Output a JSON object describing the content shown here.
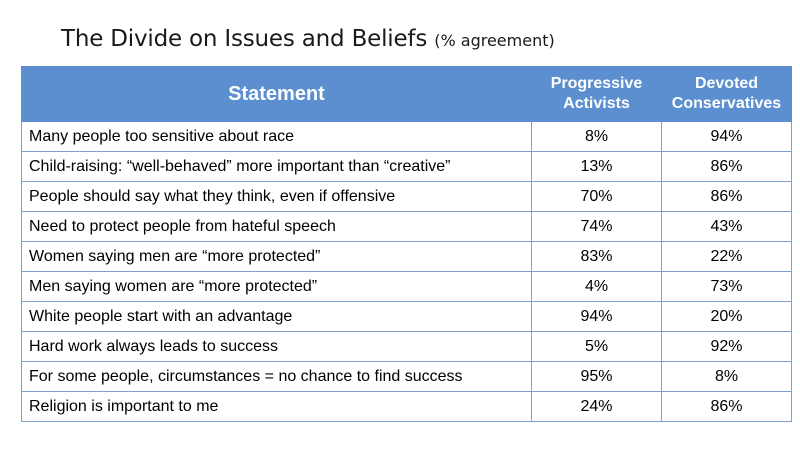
{
  "title": {
    "main": "The Divide on Issues and Beliefs",
    "sub": "(% agreement)"
  },
  "table": {
    "headers": {
      "statement": "Statement",
      "group1_line1": "Progressive",
      "group1_line2": "Activists",
      "group2_line1": "Devoted",
      "group2_line2": "Conservatives"
    },
    "rows": [
      {
        "statement": "Many people too sensitive about race",
        "progressive": "8%",
        "conservative": "94%"
      },
      {
        "statement": "Child-raising: “well-behaved” more important than “creative”",
        "progressive": "13%",
        "conservative": "86%"
      },
      {
        "statement": "People should say what they think, even if offensive",
        "progressive": "70%",
        "conservative": "86%"
      },
      {
        "statement": "Need to protect people from hateful speech",
        "progressive": "74%",
        "conservative": "43%"
      },
      {
        "statement": "Women saying men are “more protected”",
        "progressive": "83%",
        "conservative": "22%"
      },
      {
        "statement": "Men saying women are “more protected”",
        "progressive": "4%",
        "conservative": "73%"
      },
      {
        "statement": "White people start with an advantage",
        "progressive": "94%",
        "conservative": "20%"
      },
      {
        "statement": "Hard work always leads to success",
        "progressive": "5%",
        "conservative": "92%"
      },
      {
        "statement": "For some people, circumstances = no chance to find success",
        "progressive": "95%",
        "conservative": "8%"
      },
      {
        "statement": "Religion is important to me",
        "progressive": "24%",
        "conservative": "86%"
      }
    ]
  }
}
